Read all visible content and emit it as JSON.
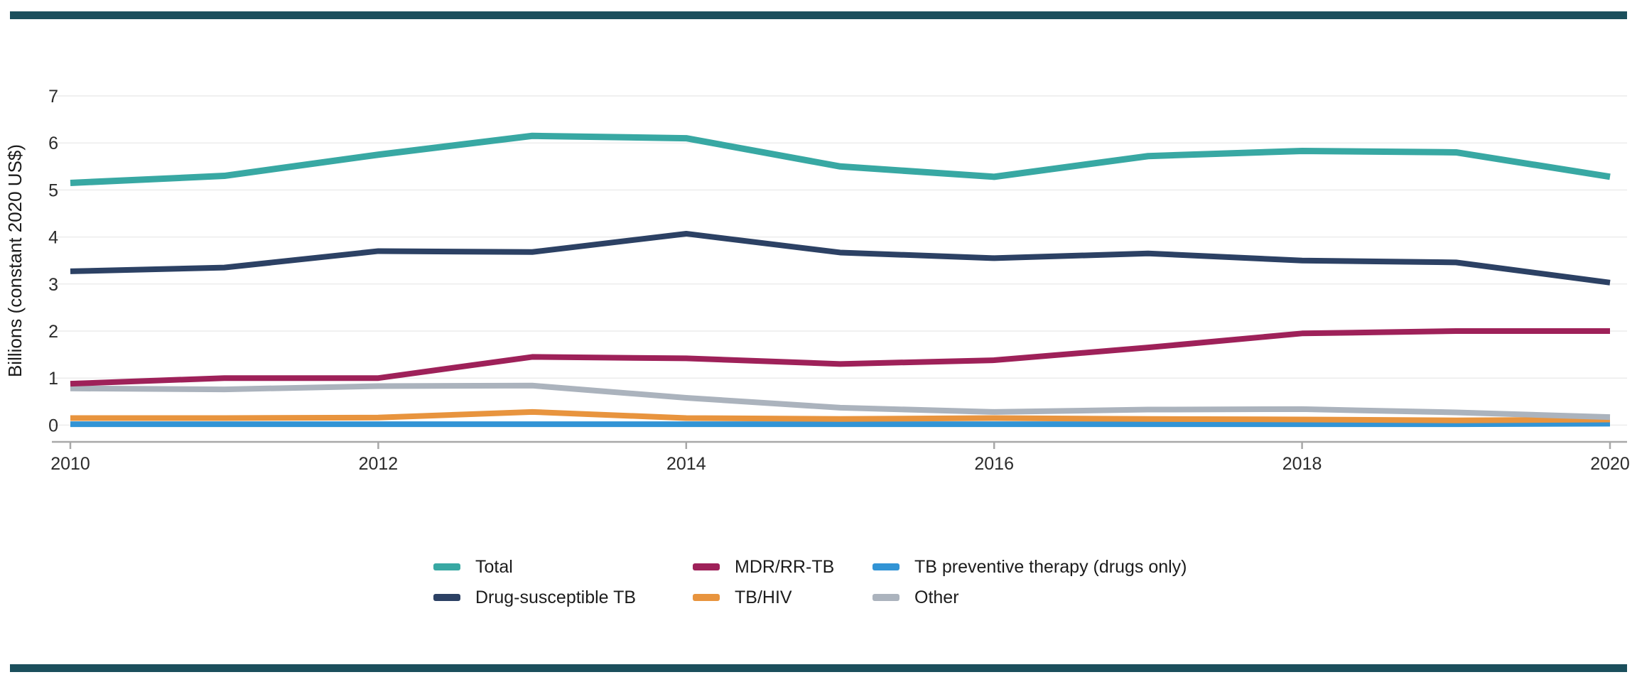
{
  "figure": {
    "decor_bar_color": "#1b4f5c",
    "background_color": "#ffffff",
    "grid_color": "#ececec",
    "axis_color": "#a8a8a8",
    "tick_label_color": "#2b2b2b"
  },
  "chart_data": {
    "type": "line",
    "title": "",
    "ylabel": "Billions (constant 2020 US$)",
    "xlabel": "",
    "x": [
      2010,
      2011,
      2012,
      2013,
      2014,
      2015,
      2016,
      2017,
      2018,
      2019,
      2020
    ],
    "x_tick_labels": [
      "2010",
      "2012",
      "2014",
      "2016",
      "2018",
      "2020"
    ],
    "y_ticks": [
      0,
      1,
      2,
      3,
      4,
      5,
      6,
      7
    ],
    "ylim": [
      0,
      7
    ],
    "grid": "horizontal",
    "legend_position": "bottom",
    "series": [
      {
        "name": "Total",
        "color": "#38a8a3",
        "values": [
          5.15,
          5.3,
          5.75,
          6.15,
          6.1,
          5.5,
          5.28,
          5.72,
          5.83,
          5.8,
          5.28
        ]
      },
      {
        "name": "Drug-susceptible TB",
        "color": "#2c4164",
        "values": [
          3.27,
          3.35,
          3.7,
          3.68,
          4.07,
          3.67,
          3.55,
          3.65,
          3.5,
          3.46,
          3.03
        ]
      },
      {
        "name": "MDR/RR-TB",
        "color": "#9e2159",
        "values": [
          0.88,
          1.0,
          1.0,
          1.45,
          1.42,
          1.3,
          1.38,
          1.65,
          1.95,
          2.0,
          2.0
        ]
      },
      {
        "name": "TB/HIV",
        "color": "#e8943e",
        "values": [
          0.15,
          0.15,
          0.16,
          0.28,
          0.15,
          0.13,
          0.15,
          0.13,
          0.12,
          0.1,
          0.12
        ]
      },
      {
        "name": "TB preventive therapy (drugs only)",
        "color": "#3294d5",
        "values": [
          0.02,
          0.02,
          0.02,
          0.02,
          0.02,
          0.02,
          0.02,
          0.02,
          0.02,
          0.02,
          0.03
        ]
      },
      {
        "name": "Other",
        "color": "#abb3bd",
        "values": [
          0.78,
          0.76,
          0.83,
          0.84,
          0.58,
          0.37,
          0.28,
          0.33,
          0.34,
          0.27,
          0.17
        ]
      }
    ]
  }
}
